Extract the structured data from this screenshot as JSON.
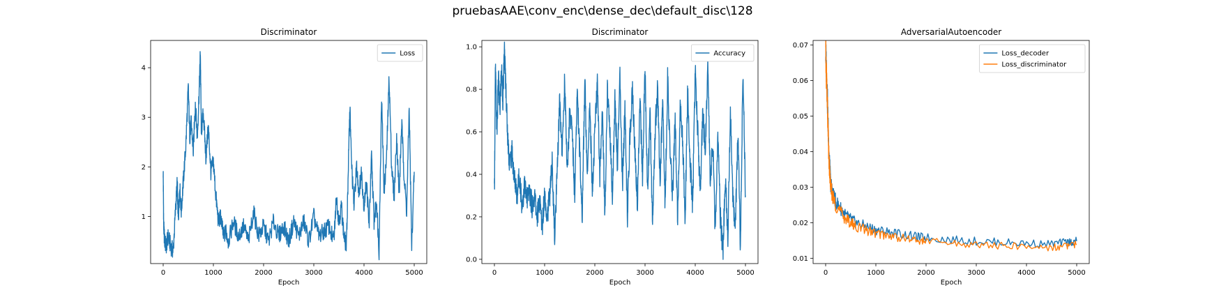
{
  "figure": {
    "suptitle": "pruebasAAE\\conv_enc\\dense_dec\\default_disc\\128"
  },
  "colors": {
    "blue": "#1f77b4",
    "orange": "#ff7f0e"
  },
  "chart_data": [
    {
      "type": "line",
      "title": "Discriminator",
      "xlabel": "Epoch",
      "ylabel": "",
      "xlim": [
        -250,
        5250
      ],
      "ylim": [
        0.05,
        4.55
      ],
      "xticks": [
        0,
        1000,
        2000,
        3000,
        4000,
        5000
      ],
      "yticks": [
        1,
        2,
        3,
        4
      ],
      "legend": "top-right",
      "series": [
        {
          "name": "Loss",
          "color": "#1f77b4",
          "x": [
            0,
            10,
            30,
            60,
            100,
            150,
            200,
            250,
            280,
            300,
            330,
            360,
            400,
            450,
            500,
            530,
            560,
            600,
            640,
            680,
            720,
            740,
            760,
            800,
            850,
            900,
            950,
            1000,
            1050,
            1100,
            1150,
            1200,
            1250,
            1300,
            1400,
            1500,
            1600,
            1700,
            1800,
            1900,
            2000,
            2100,
            2200,
            2300,
            2400,
            2500,
            2600,
            2700,
            2800,
            2900,
            3000,
            3100,
            3200,
            3300,
            3400,
            3450,
            3500,
            3550,
            3600,
            3650,
            3700,
            3720,
            3750,
            3800,
            3850,
            3900,
            3950,
            4000,
            4050,
            4100,
            4150,
            4200,
            4250,
            4300,
            4350,
            4400,
            4450,
            4500,
            4550,
            4600,
            4650,
            4700,
            4750,
            4800,
            4850,
            4900,
            4950,
            5000
          ],
          "values": [
            1.9,
            0.8,
            0.5,
            0.4,
            0.6,
            0.4,
            0.3,
            1.2,
            1.7,
            0.9,
            1.6,
            1.1,
            1.7,
            2.4,
            3.6,
            2.6,
            2.9,
            2.3,
            3.3,
            2.6,
            3.6,
            4.35,
            2.7,
            3.1,
            2.2,
            2.8,
            1.9,
            2.1,
            1.4,
            0.9,
            1.0,
            0.6,
            0.7,
            0.5,
            0.9,
            0.6,
            0.8,
            0.5,
            1.1,
            0.6,
            0.8,
            0.5,
            0.9,
            0.6,
            0.8,
            0.5,
            0.9,
            0.6,
            0.9,
            0.5,
            1.0,
            0.6,
            0.7,
            0.8,
            0.5,
            1.4,
            0.9,
            1.2,
            0.6,
            0.4,
            2.5,
            3.2,
            2.1,
            1.2,
            2.0,
            1.5,
            1.9,
            1.2,
            1.7,
            0.8,
            2.2,
            0.9,
            1.3,
            0.3,
            3.4,
            1.5,
            2.2,
            3.8,
            2.0,
            1.4,
            2.6,
            1.4,
            2.9,
            1.8,
            1.1,
            3.2,
            0.4,
            1.9
          ]
        }
      ]
    },
    {
      "type": "line",
      "title": "Discriminator",
      "xlabel": "Epoch",
      "ylabel": "",
      "xlim": [
        -250,
        5250
      ],
      "ylim": [
        -0.02,
        1.03
      ],
      "xticks": [
        0,
        1000,
        2000,
        3000,
        4000,
        5000
      ],
      "yticks": [
        0.0,
        0.2,
        0.4,
        0.6,
        0.8,
        1.0
      ],
      "legend": "top-right",
      "series": [
        {
          "name": "Accuracy",
          "color": "#1f77b4",
          "x": [
            0,
            20,
            50,
            80,
            110,
            140,
            170,
            200,
            230,
            260,
            300,
            350,
            400,
            450,
            500,
            550,
            600,
            650,
            700,
            750,
            800,
            850,
            900,
            950,
            1000,
            1050,
            1100,
            1150,
            1200,
            1250,
            1300,
            1350,
            1400,
            1450,
            1500,
            1550,
            1600,
            1650,
            1700,
            1750,
            1800,
            1850,
            1900,
            1950,
            2000,
            2050,
            2100,
            2150,
            2200,
            2250,
            2300,
            2350,
            2400,
            2450,
            2500,
            2550,
            2600,
            2650,
            2700,
            2750,
            2800,
            2850,
            2900,
            2950,
            3000,
            3050,
            3100,
            3150,
            3200,
            3250,
            3300,
            3350,
            3400,
            3450,
            3500,
            3550,
            3600,
            3650,
            3700,
            3750,
            3800,
            3850,
            3900,
            3950,
            4000,
            4050,
            4100,
            4150,
            4200,
            4250,
            4300,
            4350,
            4400,
            4450,
            4500,
            4550,
            4600,
            4650,
            4700,
            4750,
            4800,
            4850,
            4900,
            4950,
            5000
          ],
          "values": [
            0.3,
            0.9,
            0.6,
            0.85,
            0.7,
            0.9,
            0.75,
            0.98,
            0.8,
            0.6,
            0.45,
            0.5,
            0.38,
            0.3,
            0.4,
            0.25,
            0.35,
            0.28,
            0.32,
            0.25,
            0.3,
            0.2,
            0.28,
            0.15,
            0.32,
            0.2,
            0.3,
            0.45,
            0.1,
            0.4,
            0.75,
            0.5,
            0.85,
            0.4,
            0.7,
            0.6,
            0.3,
            0.8,
            0.5,
            0.2,
            0.85,
            0.4,
            0.75,
            0.3,
            0.6,
            0.82,
            0.4,
            0.7,
            0.2,
            0.8,
            0.6,
            0.3,
            0.75,
            0.45,
            0.85,
            0.35,
            0.7,
            0.2,
            0.6,
            0.8,
            0.5,
            0.25,
            0.75,
            0.4,
            0.9,
            0.3,
            0.7,
            0.15,
            0.6,
            0.8,
            0.35,
            0.75,
            0.25,
            0.85,
            0.5,
            0.3,
            0.65,
            0.2,
            0.75,
            0.55,
            0.2,
            0.8,
            0.45,
            0.25,
            0.9,
            0.6,
            0.3,
            0.7,
            0.5,
            0.9,
            0.35,
            0.55,
            0.1,
            0.6,
            0.2,
            0.03,
            0.4,
            0.1,
            0.7,
            0.3,
            0.15,
            0.6,
            0.05,
            0.9,
            0.3
          ]
        }
      ]
    },
    {
      "type": "line",
      "title": "AdversarialAutoencoder",
      "xlabel": "Epoch",
      "ylabel": "",
      "xlim": [
        -250,
        5250
      ],
      "ylim": [
        0.0085,
        0.0713
      ],
      "xticks": [
        0,
        1000,
        2000,
        3000,
        4000,
        5000
      ],
      "yticks": [
        0.01,
        0.02,
        0.03,
        0.04,
        0.05,
        0.06,
        0.07
      ],
      "legend": "top-right",
      "series": [
        {
          "name": "Loss_decoder",
          "color": "#1f77b4",
          "x": [
            0,
            20,
            40,
            60,
            80,
            100,
            150,
            200,
            300,
            400,
            500,
            600,
            800,
            1000,
            1200,
            1500,
            1800,
            2000,
            2500,
            3000,
            3500,
            4000,
            4500,
            4800,
            5000
          ],
          "values": [
            0.068,
            0.062,
            0.052,
            0.042,
            0.036,
            0.031,
            0.028,
            0.026,
            0.024,
            0.022,
            0.021,
            0.02,
            0.019,
            0.018,
            0.0175,
            0.0168,
            0.016,
            0.0158,
            0.0152,
            0.0148,
            0.0145,
            0.0142,
            0.014,
            0.0145,
            0.0148
          ]
        },
        {
          "name": "Loss_discriminator",
          "color": "#ff7f0e",
          "x": [
            0,
            20,
            40,
            60,
            80,
            100,
            150,
            200,
            300,
            400,
            500,
            600,
            800,
            1000,
            1200,
            1500,
            1800,
            2000,
            2500,
            3000,
            3500,
            4000,
            4500,
            4800,
            5000
          ],
          "values": [
            0.067,
            0.06,
            0.05,
            0.04,
            0.034,
            0.03,
            0.027,
            0.025,
            0.023,
            0.021,
            0.02,
            0.019,
            0.018,
            0.017,
            0.0165,
            0.0158,
            0.015,
            0.0148,
            0.0142,
            0.0138,
            0.0135,
            0.0132,
            0.013,
            0.0135,
            0.0138
          ]
        }
      ]
    }
  ]
}
